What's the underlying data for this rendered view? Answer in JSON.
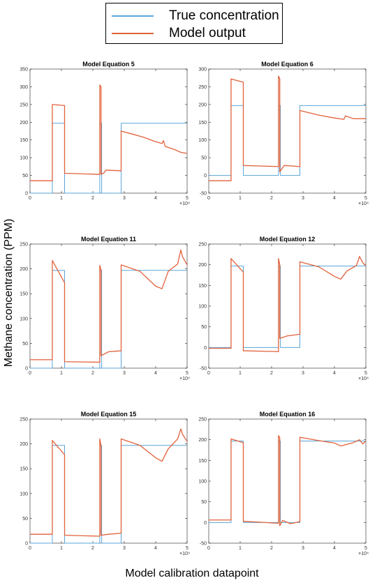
{
  "legend": {
    "items": [
      {
        "label": "True concentration",
        "color": "#5aa5d8"
      },
      {
        "label": "Model output",
        "color": "#e2613a"
      }
    ]
  },
  "ylabel": "Methane concentration (PPM)",
  "xlabel": "Model calibration datapoint",
  "x_exponent_label": "×10⁴",
  "chart_data": [
    {
      "type": "line",
      "title": "Model Equation 5",
      "xlim": [
        0,
        5
      ],
      "ylim": [
        0,
        350
      ],
      "xticks": [
        0,
        1,
        2,
        3,
        4,
        5
      ],
      "yticks": [
        0,
        50,
        100,
        150,
        200,
        250,
        300,
        350
      ],
      "series": [
        {
          "name": "True concentration",
          "color": "#5aa5d8",
          "x": [
            0,
            0.71,
            0.71,
            1.1,
            1.1,
            2.22,
            2.22,
            2.28,
            2.28,
            2.9,
            2.9,
            5
          ],
          "y": [
            0,
            0,
            197,
            197,
            0,
            0,
            197,
            197,
            0,
            0,
            197,
            197
          ]
        },
        {
          "name": "Model output",
          "color": "#e2613a",
          "x": [
            0,
            0.71,
            0.71,
            1.1,
            1.1,
            2.22,
            2.22,
            2.26,
            2.26,
            2.35,
            2.42,
            2.9,
            2.9,
            3.2,
            3.6,
            4.0,
            4.2,
            4.25,
            4.3,
            4.6,
            4.8,
            5.0
          ],
          "y": [
            35,
            35,
            250,
            247,
            56,
            53,
            305,
            300,
            53,
            57,
            65,
            63,
            175,
            168,
            158,
            145,
            140,
            148,
            132,
            123,
            115,
            112
          ]
        }
      ]
    },
    {
      "type": "line",
      "title": "Model Equation 6",
      "xlim": [
        0,
        5
      ],
      "ylim": [
        -50,
        300
      ],
      "xticks": [
        0,
        1,
        2,
        3,
        4,
        5
      ],
      "yticks": [
        -50,
        0,
        50,
        100,
        150,
        200,
        250,
        300
      ],
      "series": [
        {
          "name": "True concentration",
          "color": "#5aa5d8",
          "x": [
            0,
            0.71,
            0.71,
            1.1,
            1.1,
            2.22,
            2.22,
            2.28,
            2.28,
            2.9,
            2.9,
            5
          ],
          "y": [
            0,
            0,
            197,
            197,
            0,
            0,
            197,
            197,
            0,
            0,
            197,
            197
          ]
        },
        {
          "name": "Model output",
          "color": "#e2613a",
          "x": [
            0,
            0.71,
            0.71,
            1.1,
            1.1,
            2.22,
            2.22,
            2.26,
            2.26,
            2.4,
            2.9,
            2.9,
            3.5,
            4.0,
            4.3,
            4.35,
            4.6,
            5.0
          ],
          "y": [
            -15,
            -15,
            272,
            263,
            28,
            25,
            280,
            272,
            10,
            28,
            25,
            183,
            170,
            162,
            158,
            168,
            160,
            160
          ]
        }
      ]
    },
    {
      "type": "line",
      "title": "Model Equation 11",
      "xlim": [
        0,
        5
      ],
      "ylim": [
        0,
        250
      ],
      "xticks": [
        0,
        1,
        2,
        3,
        4,
        5
      ],
      "yticks": [
        0,
        50,
        100,
        150,
        200,
        250
      ],
      "series": [
        {
          "name": "True concentration",
          "color": "#5aa5d8",
          "x": [
            0,
            0.71,
            0.71,
            1.1,
            1.1,
            2.22,
            2.22,
            2.28,
            2.28,
            2.9,
            2.9,
            5
          ],
          "y": [
            0,
            0,
            197,
            197,
            0,
            0,
            197,
            197,
            0,
            0,
            197,
            197
          ]
        },
        {
          "name": "Model output",
          "color": "#e2613a",
          "x": [
            0,
            0.71,
            0.71,
            0.9,
            1.1,
            1.1,
            2.22,
            2.22,
            2.26,
            2.26,
            2.5,
            2.9,
            2.9,
            3.5,
            4.0,
            4.2,
            4.4,
            4.7,
            4.8,
            4.85,
            5.0
          ],
          "y": [
            17,
            17,
            217,
            195,
            172,
            13,
            12,
            207,
            198,
            25,
            33,
            35,
            208,
            195,
            165,
            160,
            195,
            210,
            238,
            225,
            208
          ]
        }
      ]
    },
    {
      "type": "line",
      "title": "Model Equation 12",
      "xlim": [
        0,
        5
      ],
      "ylim": [
        -50,
        250
      ],
      "xticks": [
        0,
        1,
        2,
        3,
        4,
        5
      ],
      "yticks": [
        -50,
        0,
        50,
        100,
        150,
        200,
        250
      ],
      "series": [
        {
          "name": "True concentration",
          "color": "#5aa5d8",
          "x": [
            0,
            0.71,
            0.71,
            1.1,
            1.1,
            2.22,
            2.22,
            2.28,
            2.28,
            2.9,
            2.9,
            5
          ],
          "y": [
            0,
            0,
            197,
            197,
            0,
            0,
            197,
            197,
            0,
            0,
            197,
            197
          ]
        },
        {
          "name": "Model output",
          "color": "#e2613a",
          "x": [
            0,
            0.71,
            0.71,
            1.1,
            1.1,
            2.22,
            2.22,
            2.26,
            2.26,
            2.5,
            2.9,
            2.9,
            3.5,
            4.0,
            4.2,
            4.4,
            4.7,
            4.8,
            4.9,
            5.0
          ],
          "y": [
            -2,
            -2,
            215,
            182,
            -8,
            -10,
            215,
            200,
            22,
            28,
            32,
            207,
            195,
            172,
            165,
            185,
            198,
            220,
            205,
            198
          ]
        }
      ]
    },
    {
      "type": "line",
      "title": "Model Equation 15",
      "xlim": [
        0,
        5
      ],
      "ylim": [
        0,
        250
      ],
      "xticks": [
        0,
        1,
        2,
        3,
        4,
        5
      ],
      "yticks": [
        0,
        50,
        100,
        150,
        200,
        250
      ],
      "series": [
        {
          "name": "True concentration",
          "color": "#5aa5d8",
          "x": [
            0,
            0.71,
            0.71,
            1.1,
            1.1,
            2.22,
            2.22,
            2.28,
            2.28,
            2.9,
            2.9,
            5
          ],
          "y": [
            0,
            0,
            197,
            197,
            0,
            0,
            197,
            197,
            0,
            0,
            197,
            197
          ]
        },
        {
          "name": "Model output",
          "color": "#e2613a",
          "x": [
            0,
            0.71,
            0.71,
            1.1,
            1.1,
            2.22,
            2.22,
            2.26,
            2.26,
            2.5,
            2.9,
            2.9,
            3.5,
            4.0,
            4.2,
            4.4,
            4.7,
            4.8,
            4.85,
            5.0
          ],
          "y": [
            18,
            18,
            207,
            178,
            16,
            14,
            210,
            196,
            16,
            18,
            20,
            210,
            197,
            172,
            165,
            190,
            210,
            230,
            220,
            205
          ]
        }
      ]
    },
    {
      "type": "line",
      "title": "Model Equation 16",
      "xlim": [
        0,
        5
      ],
      "ylim": [
        -50,
        250
      ],
      "xticks": [
        0,
        1,
        2,
        3,
        4,
        5
      ],
      "yticks": [
        -50,
        0,
        50,
        100,
        150,
        200,
        250
      ],
      "series": [
        {
          "name": "True concentration",
          "color": "#5aa5d8",
          "x": [
            0,
            0.71,
            0.71,
            1.1,
            1.1,
            2.22,
            2.22,
            2.28,
            2.28,
            2.9,
            2.9,
            5
          ],
          "y": [
            0,
            0,
            197,
            197,
            0,
            0,
            197,
            197,
            0,
            0,
            197,
            197
          ]
        },
        {
          "name": "Model output",
          "color": "#e2613a",
          "x": [
            0,
            0.71,
            0.71,
            1.1,
            1.1,
            2.22,
            2.22,
            2.26,
            2.26,
            2.35,
            2.6,
            2.9,
            2.9,
            3.5,
            4.0,
            4.2,
            4.6,
            4.8,
            4.9,
            5.0
          ],
          "y": [
            6,
            6,
            202,
            193,
            3,
            -2,
            210,
            205,
            -8,
            5,
            -3,
            2,
            206,
            198,
            192,
            185,
            193,
            200,
            190,
            197
          ]
        }
      ]
    }
  ]
}
